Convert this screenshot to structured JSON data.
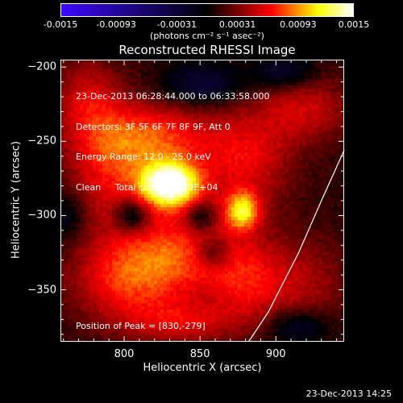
{
  "chart_data": {
    "type": "heatmap",
    "title": "Reconstructed RHESSI Image",
    "xlabel": "Heliocentric X (arcsec)",
    "ylabel": "Heliocentric Y (arcsec)",
    "xlim": [
      758,
      945
    ],
    "ylim": [
      -385,
      -195
    ],
    "x_ticks": [
      "800",
      "850",
      "900"
    ],
    "y_ticks": [
      "-200",
      "-250",
      "-300",
      "-350"
    ],
    "x_tick_values": [
      800,
      850,
      900
    ],
    "y_tick_values": [
      -200,
      -250,
      -300,
      -350
    ],
    "colorbar": {
      "ticks": [
        "-0.0015",
        "-0.00093",
        "-0.00031",
        "0.00031",
        "0.00093",
        "0.0015"
      ],
      "tick_values": [
        -0.0015,
        -0.00093,
        -0.00031,
        0.00031,
        0.00093,
        0.0015
      ],
      "range": [
        -0.0015,
        0.0015
      ],
      "units": "(photons cm⁻² s⁻¹ asec⁻²)",
      "colors": [
        "#0000ff",
        "#000000",
        "#ff0000",
        "#ffff00",
        "#ffffff"
      ]
    },
    "annotations": {
      "time_range": "23-Dec-2013 06:28:44.000 to 06:33:58.000",
      "detectors": "Detectors: 3F 5F 6F 7F 8F 9F, Att 0",
      "energy": "Energy Range: 12.0 - 25.0 keV",
      "clean": "Clean     Total counts: 2.20E+04",
      "peak": "Position of Peak = [830,-279]"
    },
    "peak": [
      830,
      -279
    ],
    "sources": [
      {
        "x": 830,
        "y": -279,
        "amp": 0.00145,
        "sx": 14,
        "sy": 11
      },
      {
        "x": 878,
        "y": -297,
        "amp": 0.00085,
        "sx": 8,
        "sy": 9
      },
      {
        "x": 822,
        "y": -247,
        "amp": 0.0006,
        "sx": 26,
        "sy": 16
      },
      {
        "x": 880,
        "y": -262,
        "amp": 0.0005,
        "sx": 22,
        "sy": 24
      },
      {
        "x": 790,
        "y": -268,
        "amp": 0.0005,
        "sx": 20,
        "sy": 28
      },
      {
        "x": 835,
        "y": -325,
        "amp": 0.0006,
        "sx": 30,
        "sy": 22
      },
      {
        "x": 800,
        "y": -345,
        "amp": 0.0005,
        "sx": 26,
        "sy": 20
      },
      {
        "x": 882,
        "y": -345,
        "amp": 0.00045,
        "sx": 18,
        "sy": 20
      },
      {
        "x": 775,
        "y": -222,
        "amp": 0.0004,
        "sx": 16,
        "sy": 20
      },
      {
        "x": 920,
        "y": -228,
        "amp": 0.0004,
        "sx": 22,
        "sy": 16
      },
      {
        "x": 920,
        "y": -345,
        "amp": 0.0003,
        "sx": 20,
        "sy": 22
      },
      {
        "x": 838,
        "y": -372,
        "amp": 0.0004,
        "sx": 26,
        "sy": 10
      },
      {
        "x": 805,
        "y": -300,
        "amp": -0.00055,
        "sx": 8,
        "sy": 8
      },
      {
        "x": 850,
        "y": -301,
        "amp": -0.00045,
        "sx": 7,
        "sy": 7
      },
      {
        "x": 858,
        "y": -325,
        "amp": -0.0004,
        "sx": 8,
        "sy": 7
      },
      {
        "x": 852,
        "y": -212,
        "amp": -0.00045,
        "sx": 18,
        "sy": 10
      },
      {
        "x": 905,
        "y": -203,
        "amp": -0.0004,
        "sx": 14,
        "sy": 8
      },
      {
        "x": 763,
        "y": -300,
        "amp": -0.0003,
        "sx": 8,
        "sy": 12
      },
      {
        "x": 915,
        "y": -375,
        "amp": -0.0004,
        "sx": 14,
        "sy": 8
      }
    ],
    "limb": [
      [
        945,
        -256
      ],
      [
        930,
        -290
      ],
      [
        915,
        -325
      ],
      [
        895,
        -365
      ],
      [
        882,
        -385
      ]
    ]
  },
  "footer_date": "23-Dec-2013 14:25"
}
